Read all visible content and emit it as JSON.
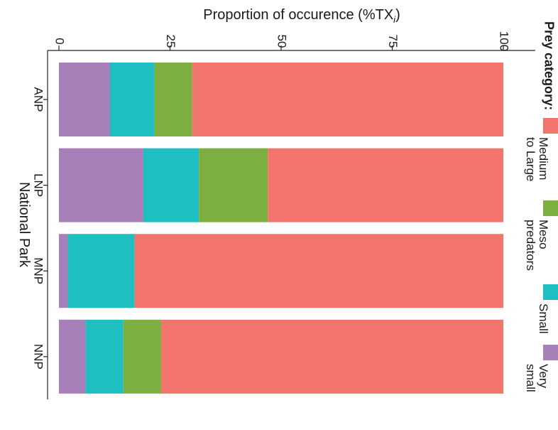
{
  "chart_data": {
    "type": "bar",
    "stacked": true,
    "orientation": "stacked bars, rotated view",
    "categories": [
      "ANP",
      "LNP",
      "MNP",
      "NNP"
    ],
    "series": [
      {
        "name": "Very small",
        "values": [
          11.5,
          19,
          2,
          6
        ],
        "color": "#A780BA"
      },
      {
        "name": "Small",
        "values": [
          10,
          12.5,
          15,
          8.5
        ],
        "color": "#1FBEC0"
      },
      {
        "name": "Meso predators",
        "values": [
          8.5,
          15.5,
          0,
          8.5
        ],
        "color": "#7CAE40"
      },
      {
        "name": "Medium to Large",
        "values": [
          70,
          53,
          83,
          77
        ],
        "color": "#F2756D"
      }
    ],
    "value_axis": {
      "label": "Proportion of occurence (%TX",
      "label_subscript": "i",
      "label_suffix": ")",
      "range": [
        0,
        100
      ],
      "ticks": [
        0,
        25,
        50,
        75,
        100
      ],
      "tick_labels": [
        "0",
        "25",
        "50",
        "75",
        "100"
      ]
    },
    "category_axis": {
      "label": "National Park"
    },
    "legend": {
      "title": "Prey category:",
      "position": "right",
      "entries": [
        {
          "label_lines": [
            "Medium",
            "to Large"
          ],
          "color": "#F2756D"
        },
        {
          "label_lines": [
            "Meso",
            "predators"
          ],
          "color": "#7CAE40"
        },
        {
          "label_lines": [
            "Small"
          ],
          "color": "#1FBEC0"
        },
        {
          "label_lines": [
            "Very",
            "small"
          ],
          "color": "#A780BA"
        }
      ]
    },
    "grid": false
  }
}
